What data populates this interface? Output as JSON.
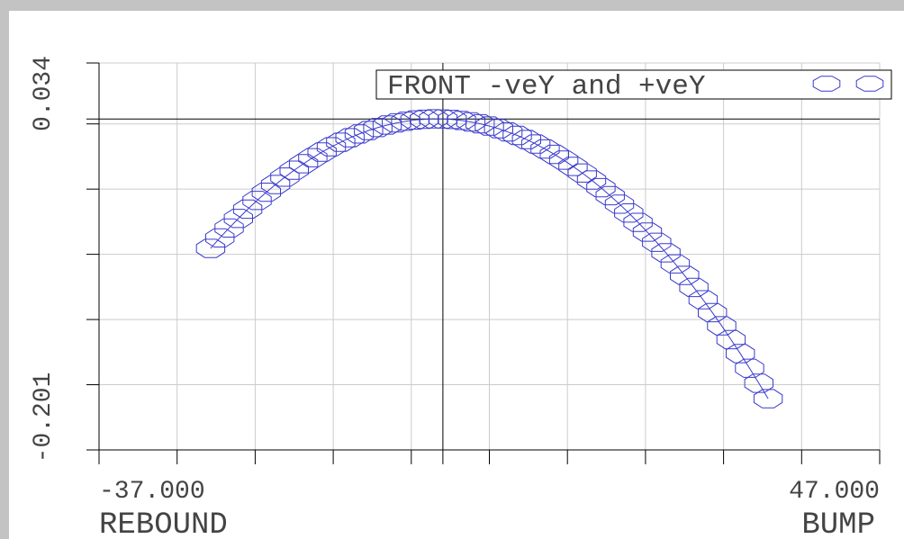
{
  "chart_data": {
    "type": "scatter",
    "series": [
      {
        "name": "FRONT -veY and +veY",
        "color": "#3a3acc",
        "x": [
          -25,
          -24,
          -23,
          -22,
          -21,
          -20,
          -19,
          -18,
          -17,
          -16,
          -15,
          -14,
          -13,
          -12,
          -11,
          -10,
          -9,
          -8,
          -7,
          -6,
          -5,
          -4,
          -3,
          -2,
          -1,
          0,
          1,
          2,
          3,
          4,
          5,
          6,
          7,
          8,
          9,
          10,
          11,
          12,
          13,
          14,
          15,
          16,
          17,
          18,
          19,
          20,
          21,
          22,
          23,
          24,
          25,
          26,
          27,
          28,
          29,
          30,
          31,
          32,
          33,
          34,
          35
        ],
        "values": [
          -0.0786,
          -0.0722,
          -0.0662,
          -0.0604,
          -0.0548,
          -0.0495,
          -0.0445,
          -0.0398,
          -0.0353,
          -0.0311,
          -0.0272,
          -0.0235,
          -0.0201,
          -0.0169,
          -0.0141,
          -0.0114,
          -0.0091,
          -0.007,
          -0.0052,
          -0.0037,
          -0.0024,
          -0.0014,
          -0.0006,
          -0.0002,
          0.0001,
          0,
          -0.0003,
          -0.0009,
          -0.0018,
          -0.0029,
          -0.0043,
          -0.0059,
          -0.0079,
          -0.01,
          -0.0125,
          -0.0152,
          -0.0182,
          -0.0215,
          -0.025,
          -0.0288,
          -0.0328,
          -0.0371,
          -0.0417,
          -0.0466,
          -0.0517,
          -0.0571,
          -0.0628,
          -0.0687,
          -0.0749,
          -0.0813,
          -0.088,
          -0.095,
          -0.1023,
          -0.1098,
          -0.1176,
          -0.1256,
          -0.134,
          -0.1425,
          -0.1514,
          -0.1605,
          -0.1699
        ]
      }
    ],
    "xlim": [
      -37,
      47
    ],
    "ylim": [
      -0.201,
      0.034
    ],
    "xticks": [
      {
        "value": -37,
        "label": "-37.000"
      },
      {
        "value": 47,
        "label": "47.000"
      }
    ],
    "yticks": [
      0.034,
      -0.201
    ],
    "xgrid": [
      -28.6,
      -20.2,
      -11.8,
      -3.4,
      5,
      13.4,
      21.8,
      30.2,
      38.6,
      47
    ],
    "ygrid": [
      -0.1614,
      -0.1218,
      -0.0822,
      -0.0426,
      -0.003
    ],
    "xlabel_left": "REBOUND",
    "xlabel_right": "BUMP",
    "grid": true
  }
}
